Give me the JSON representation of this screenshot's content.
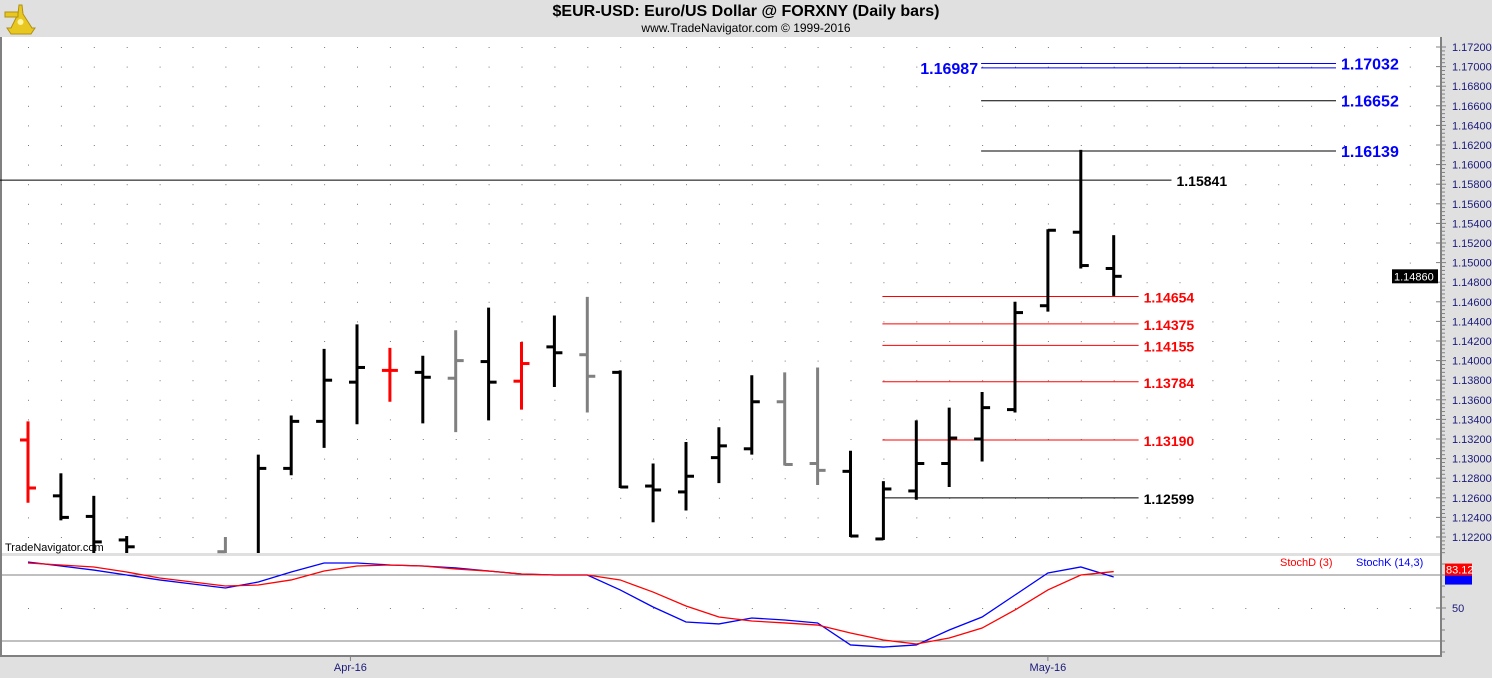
{
  "header": {
    "title": "$EUR-USD:  Euro/US Dollar @ FORXNY  (Daily bars)",
    "subtitle": "www.TradeNavigator.com © 1999-2016",
    "logo_icon": "sextant-icon"
  },
  "watermark": "TradeNavigator.com",
  "colors": {
    "up_black": "#000000",
    "red": "#ff0000",
    "gray": "#808080",
    "blue": "#0000ff",
    "axis_text": "#1a1a7a",
    "background": "#e0e0e0"
  },
  "chart_data": [
    {
      "type": "ohlc",
      "title": "$EUR-USD:  Euro/US Dollar @ FORXNY  (Daily bars)",
      "ylim": [
        1.1195,
        1.173
      ],
      "y_ticks": [
        "1.17200",
        "1.17000",
        "1.16800",
        "1.16600",
        "1.16400",
        "1.16200",
        "1.16000",
        "1.15800",
        "1.15600",
        "1.15400",
        "1.15200",
        "1.15000",
        "1.14800",
        "1.14600",
        "1.14400",
        "1.14200",
        "1.14000",
        "1.13800",
        "1.13600",
        "1.13400",
        "1.13200",
        "1.13000",
        "1.12800",
        "1.12600",
        "1.12400",
        "1.12200"
      ],
      "x_labels": [
        {
          "label": "Apr-16",
          "bar": 9.8
        },
        {
          "label": "May-16",
          "bar": 31
        }
      ],
      "last_price": "1.14860",
      "grid": "dotted",
      "bars": [
        {
          "o": 1.1319,
          "h": 1.1338,
          "l": 1.1255,
          "c": 1.127,
          "color": "red"
        },
        {
          "o": 1.1262,
          "h": 1.1285,
          "l": 1.1237,
          "c": 1.124,
          "color": "black"
        },
        {
          "o": 1.1241,
          "h": 1.1262,
          "l": 1.12,
          "c": 1.1215,
          "color": "black"
        },
        {
          "o": 1.1217,
          "h": 1.1221,
          "l": 1.12,
          "c": 1.121,
          "color": "black"
        },
        null,
        null,
        {
          "o": 1.1205,
          "h": 1.122,
          "l": 1.1195,
          "c": 1.12,
          "color": "gray"
        },
        {
          "o": 1.119,
          "h": 1.1304,
          "l": 1.118,
          "c": 1.129,
          "color": "black"
        },
        {
          "o": 1.129,
          "h": 1.1344,
          "l": 1.1283,
          "c": 1.1338,
          "color": "black"
        },
        {
          "o": 1.1338,
          "h": 1.1412,
          "l": 1.1311,
          "c": 1.138,
          "color": "black"
        },
        {
          "o": 1.1378,
          "h": 1.1437,
          "l": 1.1335,
          "c": 1.1393,
          "color": "black"
        },
        {
          "o": 1.139,
          "h": 1.1413,
          "l": 1.1358,
          "c": 1.139,
          "color": "red"
        },
        {
          "o": 1.1388,
          "h": 1.1405,
          "l": 1.1336,
          "c": 1.1383,
          "color": "black"
        },
        {
          "o": 1.1382,
          "h": 1.1431,
          "l": 1.1327,
          "c": 1.14,
          "color": "gray"
        },
        {
          "o": 1.1399,
          "h": 1.1454,
          "l": 1.1339,
          "c": 1.1378,
          "color": "black"
        },
        {
          "o": 1.1379,
          "h": 1.1419,
          "l": 1.135,
          "c": 1.1397,
          "color": "red"
        },
        {
          "o": 1.1414,
          "h": 1.1446,
          "l": 1.1373,
          "c": 1.1408,
          "color": "black"
        },
        {
          "o": 1.1406,
          "h": 1.1465,
          "l": 1.1347,
          "c": 1.1384,
          "color": "gray"
        },
        {
          "o": 1.1388,
          "h": 1.139,
          "l": 1.127,
          "c": 1.1271,
          "color": "black"
        },
        {
          "o": 1.1272,
          "h": 1.1295,
          "l": 1.1235,
          "c": 1.1268,
          "color": "black"
        },
        {
          "o": 1.1266,
          "h": 1.1317,
          "l": 1.1247,
          "c": 1.1282,
          "color": "black"
        },
        {
          "o": 1.1301,
          "h": 1.1332,
          "l": 1.1275,
          "c": 1.1313,
          "color": "black"
        },
        {
          "o": 1.131,
          "h": 1.1385,
          "l": 1.1304,
          "c": 1.1358,
          "color": "black"
        },
        {
          "o": 1.1358,
          "h": 1.1388,
          "l": 1.1293,
          "c": 1.1294,
          "color": "gray"
        },
        {
          "o": 1.1295,
          "h": 1.1393,
          "l": 1.1273,
          "c": 1.1288,
          "color": "gray"
        },
        {
          "o": 1.1287,
          "h": 1.1308,
          "l": 1.122,
          "c": 1.1221,
          "color": "black"
        },
        {
          "o": 1.1218,
          "h": 1.1277,
          "l": 1.1217,
          "c": 1.1269,
          "color": "black"
        },
        {
          "o": 1.1267,
          "h": 1.1339,
          "l": 1.1258,
          "c": 1.1295,
          "color": "black"
        },
        {
          "o": 1.1295,
          "h": 1.1352,
          "l": 1.1271,
          "c": 1.1321,
          "color": "black"
        },
        {
          "o": 1.132,
          "h": 1.1368,
          "l": 1.1297,
          "c": 1.1352,
          "color": "black"
        },
        {
          "o": 1.135,
          "h": 1.146,
          "l": 1.1347,
          "c": 1.1449,
          "color": "black"
        },
        {
          "o": 1.1456,
          "h": 1.1534,
          "l": 1.145,
          "c": 1.1533,
          "color": "black"
        },
        {
          "o": 1.1531,
          "h": 1.1615,
          "l": 1.1494,
          "c": 1.1497,
          "color": "black"
        },
        {
          "o": 1.1494,
          "h": 1.1528,
          "l": 1.1466,
          "c": 1.1486,
          "color": "black"
        }
      ],
      "levels": [
        {
          "value": 1.17032,
          "label": "1.17032",
          "color": "blue",
          "from_bar": 29,
          "to_bar": 40,
          "label_side": "right"
        },
        {
          "value": 1.16987,
          "label": "1.16987",
          "color": "blue",
          "from_bar": 29,
          "to_bar": 40,
          "label_side": "left"
        },
        {
          "value": 1.16652,
          "label": "1.16652",
          "color": "black",
          "label_color": "blue",
          "from_bar": 29,
          "to_bar": 40,
          "label_side": "right"
        },
        {
          "value": 1.16139,
          "label": "1.16139",
          "color": "black",
          "label_color": "blue",
          "from_bar": 29,
          "to_bar": 40,
          "label_side": "right"
        },
        {
          "value": 1.15841,
          "label": "1.15841",
          "color": "black",
          "label_color": "black",
          "from_bar": -1,
          "to_bar": 35,
          "label_side": "right"
        },
        {
          "value": 1.14654,
          "label": "1.14654",
          "color": "red",
          "from_bar": 26,
          "to_bar": 34,
          "label_side": "right"
        },
        {
          "value": 1.14375,
          "label": "1.14375",
          "color": "red",
          "from_bar": 26,
          "to_bar": 34,
          "label_side": "right"
        },
        {
          "value": 1.14155,
          "label": "1.14155",
          "color": "red",
          "from_bar": 26,
          "to_bar": 34,
          "label_side": "right"
        },
        {
          "value": 1.13784,
          "label": "1.13784",
          "color": "red",
          "from_bar": 26,
          "to_bar": 34,
          "label_side": "right"
        },
        {
          "value": 1.1319,
          "label": "1.13190",
          "color": "red",
          "from_bar": 26,
          "to_bar": 34,
          "label_side": "right"
        },
        {
          "value": 1.12599,
          "label": "1.12599",
          "color": "black",
          "label_color": "black",
          "from_bar": 26,
          "to_bar": 34,
          "label_side": "right"
        }
      ]
    },
    {
      "type": "line",
      "ylim": [
        7,
        97
      ],
      "y_ticks": [
        "50"
      ],
      "reference_lines": [
        80,
        20
      ],
      "legend": "top-right",
      "series": [
        {
          "name": "StochD (3)",
          "color": "red",
          "last_label": "83.12",
          "values": [
            90.9,
            89.1,
            87.3,
            82.7,
            77.3,
            73.6,
            70,
            70.9,
            75.5,
            83.6,
            88.2,
            89.1,
            88.2,
            85.5,
            83.6,
            80.9,
            80,
            80,
            75.5,
            64.5,
            51.8,
            41.8,
            38.2,
            36.4,
            34.5,
            27.3,
            20.9,
            17.3,
            22.7,
            31.8,
            48.2,
            66.4,
            80,
            83.12
          ]
        },
        {
          "name": "StochK (14,3)",
          "color": "blue",
          "values": [
            91.8,
            88.2,
            84.5,
            80,
            75.5,
            71.8,
            68.2,
            73.6,
            82.7,
            90.9,
            90.9,
            89.1,
            88.2,
            86.4,
            83.6,
            80.9,
            80,
            80,
            66.4,
            50.9,
            37.3,
            35.5,
            40.9,
            39.1,
            36.4,
            16.4,
            14.5,
            16.4,
            30,
            41.8,
            61.8,
            81.8,
            87.3,
            78.2
          ]
        }
      ]
    }
  ]
}
